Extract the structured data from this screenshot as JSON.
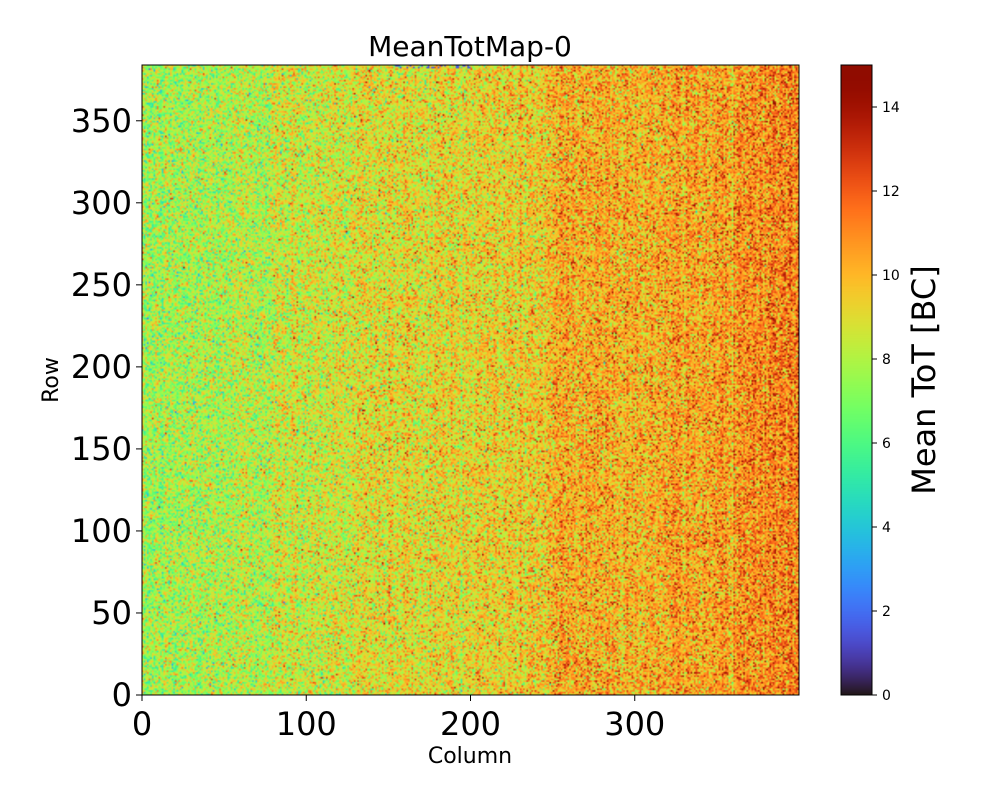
{
  "chart_data": {
    "type": "heatmap",
    "title": "MeanTotMap-0",
    "xlabel": "Column",
    "ylabel": "Row",
    "colorbar_label": "Mean ToT [BC]",
    "colormap": "turbo",
    "xlim": [
      0,
      400
    ],
    "ylim": [
      0,
      384
    ],
    "clim": [
      0,
      15
    ],
    "x_ticks": [
      0,
      100,
      200,
      300
    ],
    "y_ticks": [
      0,
      50,
      100,
      150,
      200,
      250,
      300,
      350
    ],
    "colorbar_ticks": [
      0,
      2,
      4,
      6,
      8,
      10,
      12,
      14
    ],
    "grid": false,
    "colorbar_position": "right",
    "summary": {
      "columns": 400,
      "rows": 384,
      "column_mean_profile": [
        {
          "column": 0,
          "mean": 7.6
        },
        {
          "column": 50,
          "mean": 7.9
        },
        {
          "column": 100,
          "mean": 8.6
        },
        {
          "column": 150,
          "mean": 9.0
        },
        {
          "column": 200,
          "mean": 9.2
        },
        {
          "column": 240,
          "mean": 9.5
        },
        {
          "column": 260,
          "mean": 10.3
        },
        {
          "column": 300,
          "mean": 10.2
        },
        {
          "column": 340,
          "mean": 10.4
        },
        {
          "column": 370,
          "mean": 11.0
        },
        {
          "column": 399,
          "mean": 11.2
        }
      ],
      "pixel_noise_std": 1.5
    }
  }
}
